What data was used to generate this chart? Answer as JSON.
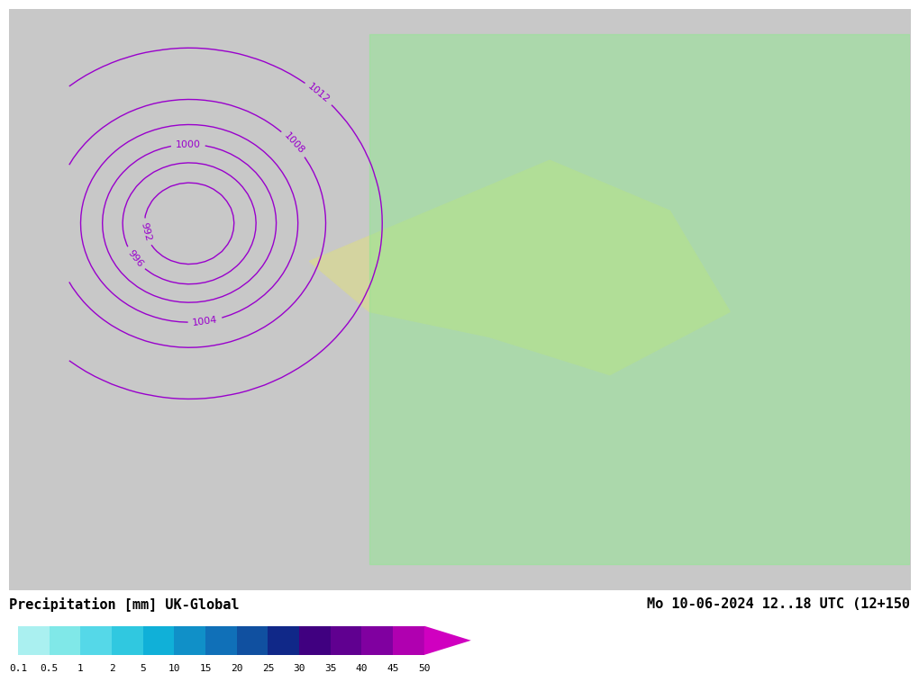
{
  "title_left": "Precipitation [mm] UK-Global",
  "title_right": "Mo 10-06-2024 12..18 UTC (12+150",
  "colorbar_values": [
    0.1,
    0.5,
    1,
    2,
    5,
    10,
    15,
    20,
    25,
    30,
    35,
    40,
    45,
    50
  ],
  "colorbar_colors": [
    "#aaf0f0",
    "#80e8e8",
    "#55d8e8",
    "#30c8e0",
    "#10b0d8",
    "#1090c8",
    "#1070b8",
    "#1050a0",
    "#102888",
    "#400080",
    "#600090",
    "#8000a0",
    "#b000b0",
    "#d000c0"
  ],
  "background_color": "#c8c8c8",
  "map_bg": "#c8c8c8",
  "land_color": "#d4d4a0",
  "sea_color": "#c8c8c8",
  "precip_area_color": "#90e890",
  "contour_color_model": "#9900cc",
  "contour_color_obs": "#ff0000",
  "fig_width": 10.0,
  "fig_height": 7.33
}
